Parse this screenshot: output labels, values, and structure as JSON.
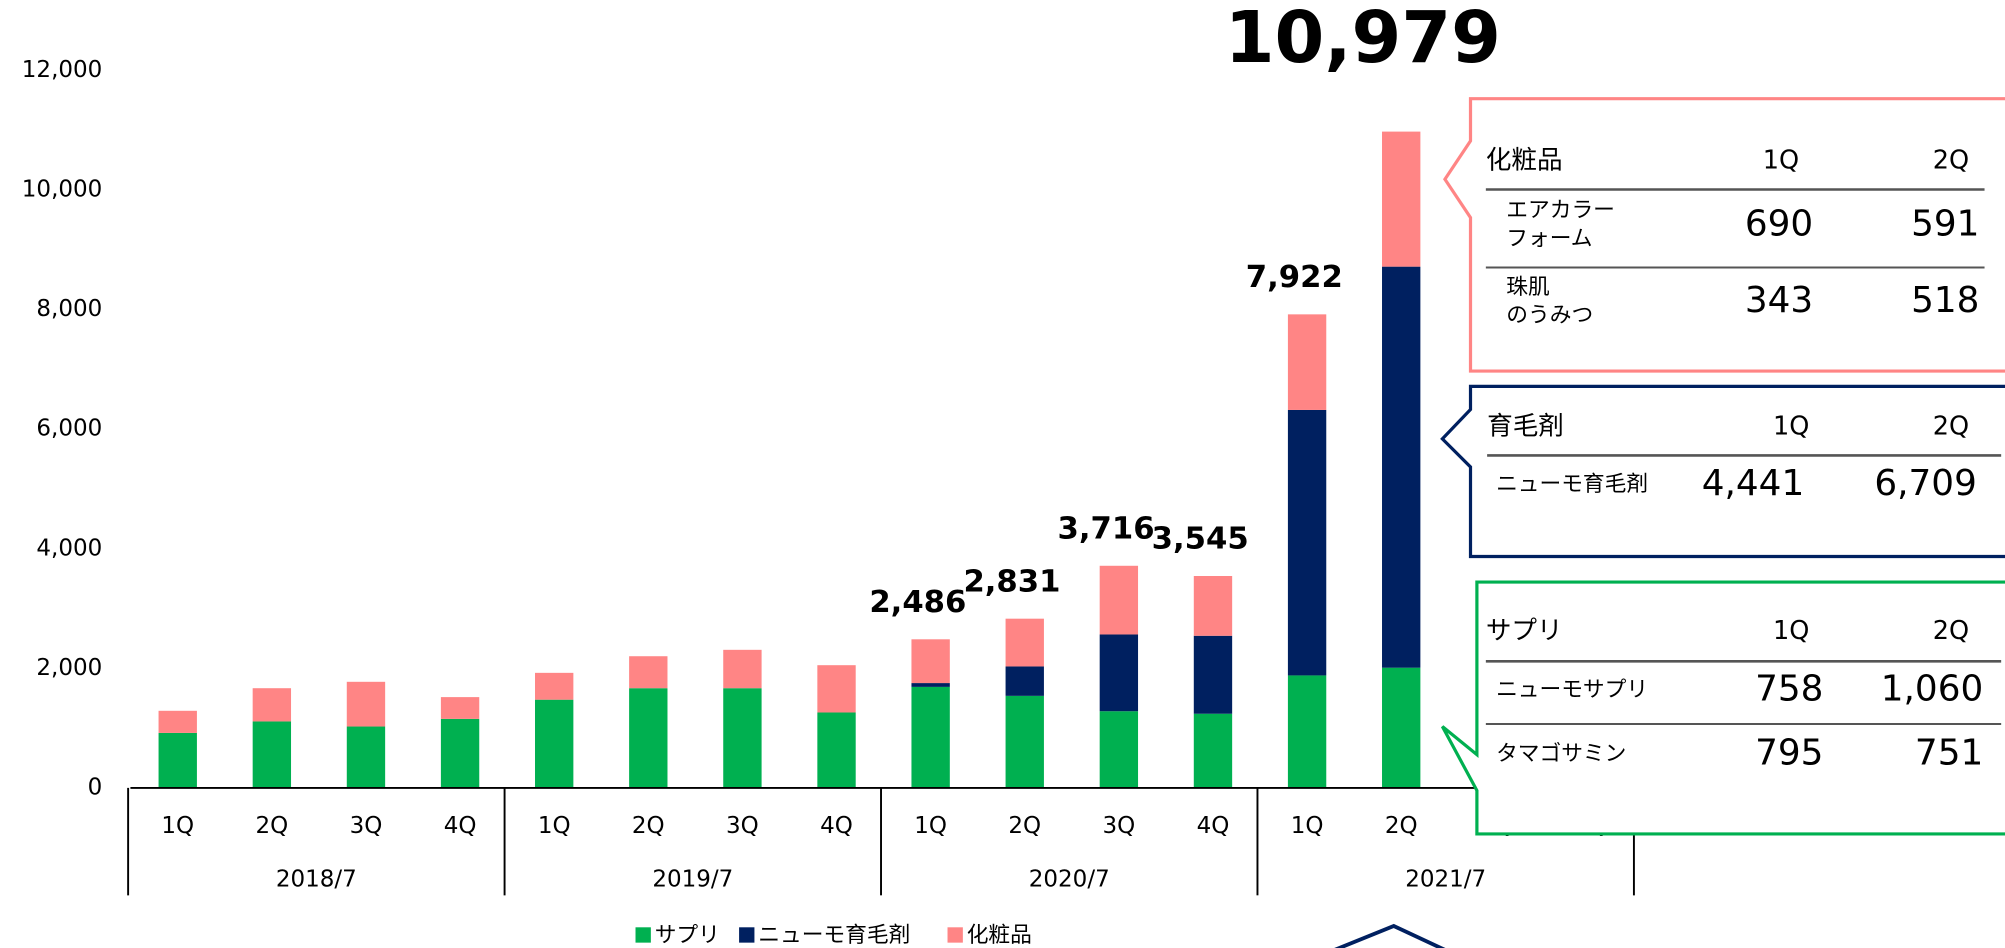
{
  "chart_data": {
    "type": "stacked_bar",
    "groups": [
      "2018/7",
      "2019/7",
      "2020/7",
      "2021/7"
    ],
    "categories": [
      "1Q",
      "2Q",
      "3Q",
      "4Q",
      "1Q",
      "2Q",
      "3Q",
      "4Q",
      "1Q",
      "2Q",
      "3Q",
      "4Q",
      "1Q",
      "2Q",
      "3Q",
      "4Q"
    ],
    "series": [
      {
        "name": "サプリ",
        "color": "#00b050",
        "values": [
          920,
          1112,
          1027,
          1155,
          1476,
          1668,
          1668,
          1262,
          1690,
          1540,
          1283,
          1241,
          1882,
          2011,
          null,
          null
        ]
      },
      {
        "name": "ニューモ育毛剤",
        "color": "#002060",
        "values": [
          0,
          0,
          0,
          0,
          0,
          0,
          0,
          0,
          64,
          492,
          1284,
          1304,
          4441,
          6709,
          null,
          null
        ]
      },
      {
        "name": "化粧品",
        "color": "#ff8585",
        "values": [
          370,
          556,
          748,
          364,
          449,
          535,
          642,
          791,
          732,
          799,
          1149,
          1000,
          1599,
          2259,
          null,
          null
        ]
      }
    ],
    "totals": [
      null,
      null,
      null,
      null,
      null,
      null,
      null,
      null,
      2486,
      2831,
      3716,
      3545,
      7922,
      10979,
      null,
      null
    ],
    "total_labels": [
      null,
      null,
      null,
      null,
      null,
      null,
      null,
      null,
      "2,486",
      "2,831",
      "3,716",
      "3,545",
      "7,922",
      "10,979",
      null,
      null
    ],
    "highlight_color": "#ff0000",
    "ylim": [
      0,
      12000
    ],
    "yticks": [
      0,
      {
        "value": 2000,
        "label": "2,000"
      },
      {
        "value": 4000,
        "label": "4,000"
      },
      {
        "value": 6000,
        "label": "6,000"
      },
      {
        "value": 8000,
        "label": "8,000"
      },
      {
        "value": 10000,
        "label": "10,000"
      },
      {
        "value": 12000,
        "label": "12,000"
      }
    ],
    "grid": false,
    "legend": "bottom"
  },
  "callouts": [
    {
      "title": "化粧品",
      "color": "#ff8585",
      "columns": [
        "1Q",
        "2Q"
      ],
      "rows": [
        {
          "name": [
            "エアカラー",
            "フォーム"
          ],
          "values": [
            "690",
            "591"
          ]
        },
        {
          "name": [
            "珠肌",
            "のうみつ"
          ],
          "values": [
            "343",
            "518"
          ]
        }
      ]
    },
    {
      "title": "育毛剤",
      "color": "#002060",
      "columns": [
        "1Q",
        "2Q"
      ],
      "rows": [
        {
          "name": [
            "ニューモ育毛剤"
          ],
          "values": [
            "4,441",
            "6,709"
          ]
        }
      ]
    },
    {
      "title": "サプリ",
      "color": "#00b050",
      "columns": [
        "1Q",
        "2Q"
      ],
      "rows": [
        {
          "name": [
            "ニューモサプリ"
          ],
          "values": [
            "758",
            "1,060"
          ]
        },
        {
          "name": [
            "タマゴサミン"
          ],
          "values": [
            "795",
            "751"
          ]
        }
      ]
    }
  ]
}
